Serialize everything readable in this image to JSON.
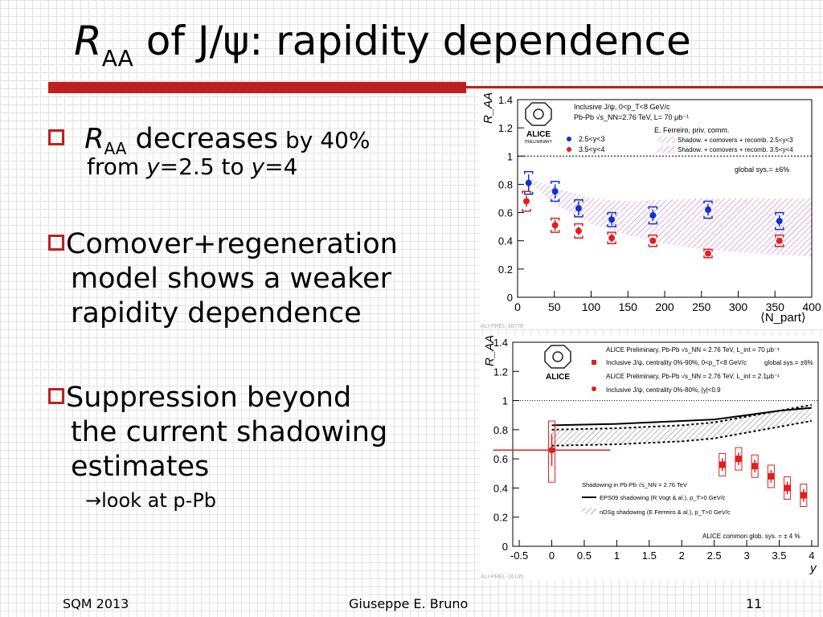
{
  "title": {
    "r": "R",
    "sub": "AA",
    "rest": " of J/ψ: rapidity dependence"
  },
  "bullets": [
    {
      "r": "R",
      "sub": "AA",
      "t1": " decreases",
      "t2": " by 40%",
      "line2": "from ",
      "y1": "y",
      "mid": "=2.5 to ",
      "y2": "y",
      "end": "=4"
    },
    {
      "line1": "Comover+regeneration",
      "line2": "model shows a weaker",
      "line3": "rapidity dependence"
    },
    {
      "line1": "Suppression beyond",
      "line2": "the current shadowing",
      "line3": "estimates"
    },
    {
      "text": "→look at  p-Pb"
    }
  ],
  "footer": {
    "left": "SQM 2013",
    "center": "Giuseppe E. Bruno",
    "right": "11"
  },
  "colors": {
    "accent": "#c0201d",
    "blue": "#1030d0",
    "red": "#e02020"
  },
  "chart_data": [
    {
      "type": "scatter",
      "xlabel": "⟨N_part⟩",
      "ylabel": "R_AA",
      "xlim": [
        0,
        400
      ],
      "ylim": [
        0,
        1.4
      ],
      "x_ticks": [
        0,
        50,
        100,
        150,
        200,
        250,
        300,
        350,
        400
      ],
      "y_ticks": [
        0,
        0.2,
        0.4,
        0.6,
        0.8,
        1,
        1.2,
        1.4
      ],
      "legend": {
        "header1": "Inclusive J/ψ, 0<p_T<8 GeV/c",
        "header2": "Pb-Pb √s_NN=2.76 TeV, L= 70 μb⁻¹",
        "model_author": "E. Ferreiro, priv. comm.",
        "series1": "2.5<y<3",
        "series2": "3.5<y<4",
        "model1": "Shadow. + comovers + recomb. 2.5<y<3",
        "model2": "Shadow. + comovers + recomb. 3.5<y<4",
        "sys": "global sys.= ±6%"
      },
      "logo": "ALICE",
      "logo_sub": "PRELIMINARY",
      "tag": "ALI-PREL-36778",
      "series": [
        {
          "name": "2.5<y<3",
          "color": "#1030d0",
          "x": [
            15,
            51,
            83,
            128,
            184,
            259,
            356
          ],
          "y": [
            0.81,
            0.75,
            0.63,
            0.55,
            0.58,
            0.62,
            0.54
          ],
          "err": [
            0.06,
            0.05,
            0.05,
            0.04,
            0.04,
            0.04,
            0.04
          ],
          "sys": [
            0.08,
            0.07,
            0.06,
            0.05,
            0.06,
            0.06,
            0.06
          ]
        },
        {
          "name": "3.5<y<4",
          "color": "#e02020",
          "x": [
            12,
            51,
            83,
            128,
            184,
            259,
            356
          ],
          "y": [
            0.68,
            0.51,
            0.47,
            0.42,
            0.4,
            0.31,
            0.4
          ],
          "err": [
            0.04,
            0.04,
            0.03,
            0.03,
            0.02,
            0.02,
            0.02
          ],
          "sys": [
            0.07,
            0.05,
            0.05,
            0.04,
            0.04,
            0.03,
            0.04
          ]
        }
      ]
    },
    {
      "type": "scatter",
      "xlabel": "y",
      "ylabel": "R_AA",
      "xlim": [
        -0.6,
        4.1
      ],
      "ylim": [
        0,
        1.4
      ],
      "x_ticks": [
        -0.5,
        0,
        0.5,
        1,
        1.5,
        2,
        2.5,
        3,
        3.5,
        4
      ],
      "x_tick_labels": [
        "-0.5",
        "0",
        "0.5",
        "1",
        "1.5",
        "2",
        "2.5",
        "3",
        "3.5",
        "4"
      ],
      "y_ticks": [
        0,
        0.2,
        0.4,
        0.6,
        0.8,
        1,
        1.2,
        1.4
      ],
      "legend": {
        "l1": "ALICE Preliminary, Pb-Pb √s_NN = 2.76 TeV, L_int = 70 μb⁻¹",
        "l2": "Inclusive J/ψ, centrality 0%-90%, 0<p_T<8 GeV/c",
        "l2b": "global sys.= ±6%",
        "l3": "ALICE Preliminary, Pb-Pb √s_NN = 2.76 TeV, L_int = 2.1μb⁻¹",
        "l4": "Inclusive J/ψ, centrality 0%-80%, |y|<0.9",
        "shadow_title": "Shadowing in Pb-Pb √s_NN = 2.76 TeV",
        "eps09": "EPS09 shadowing (R.Vogt & al.), p_T>0 GeV/c",
        "ndsg": "nDSg shadowing (E.Ferreiro & al.), p_T>0 GeV/c",
        "common": "ALICE common glob. sys. = ± 4 %"
      },
      "logo": "ALICE",
      "tag": "ALI-PREL-16135",
      "series": [
        {
          "name": "Inclusive J/ψ, centrality 0%-90%, 0<p_T<8 GeV/c",
          "color": "#e02020",
          "x": [
            2.625,
            2.875,
            3.125,
            3.375,
            3.625,
            3.875
          ],
          "y": [
            0.56,
            0.6,
            0.55,
            0.48,
            0.4,
            0.35
          ]
        },
        {
          "name": "Inclusive J/ψ, centrality 0%-80%, |y|<0.9",
          "color": "#e02020",
          "x": [
            0
          ],
          "y": [
            0.66
          ],
          "xerr": 0.9,
          "yerr": 0.11
        }
      ],
      "eps09_curve": {
        "x": [
          0,
          1,
          2,
          2.5,
          3,
          3.5,
          4
        ],
        "y": [
          0.83,
          0.84,
          0.86,
          0.87,
          0.9,
          0.93,
          0.95
        ]
      },
      "ndsg_band": {
        "x": [
          0,
          1,
          2,
          2.5,
          3,
          3.5,
          4
        ],
        "lo": [
          0.69,
          0.7,
          0.72,
          0.74,
          0.78,
          0.82,
          0.86
        ],
        "hi": [
          0.8,
          0.81,
          0.83,
          0.85,
          0.89,
          0.93,
          0.97
        ]
      }
    }
  ]
}
